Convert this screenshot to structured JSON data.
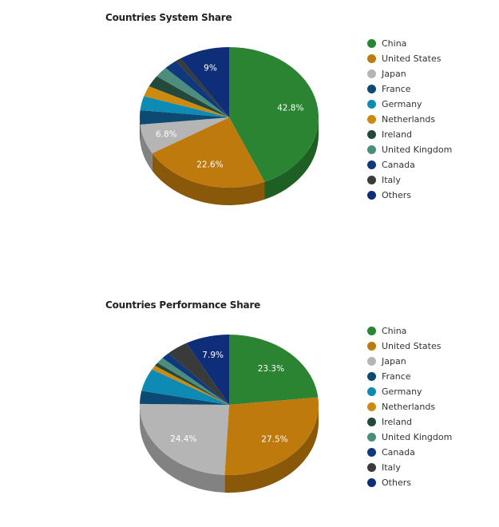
{
  "charts": [
    {
      "title": "Countries System Share",
      "chart_data": {
        "type": "pie",
        "categories": [
          "China",
          "United States",
          "Japan",
          "France",
          "Germany",
          "Netherlands",
          "Ireland",
          "United Kingdom",
          "Canada",
          "Italy",
          "Others"
        ],
        "values": [
          42.8,
          22.6,
          6.8,
          3.2,
          3.2,
          2.4,
          2.6,
          2.4,
          2.4,
          1.0,
          9.0
        ],
        "labels": [
          "42.8%",
          "22.6%",
          "6.8%",
          "",
          "",
          "",
          "",
          "",
          "",
          "",
          "9%"
        ],
        "colors": [
          "#2a8431",
          "#bf7a0d",
          "#b5b5b5",
          "#0c4a74",
          "#0d8bb4",
          "#cc8a10",
          "#23493a",
          "#4c8d7d",
          "#0e3a7d",
          "#3a3a3a",
          "#0e2e7a"
        ],
        "legend_position": "right"
      }
    },
    {
      "title": "Countries Performance Share",
      "chart_data": {
        "type": "pie",
        "categories": [
          "China",
          "United States",
          "Japan",
          "France",
          "Germany",
          "Netherlands",
          "Ireland",
          "United Kingdom",
          "Canada",
          "Italy",
          "Others"
        ],
        "values": [
          23.3,
          27.5,
          24.4,
          3.0,
          5.2,
          1.0,
          0.8,
          1.4,
          1.5,
          4.0,
          7.9
        ],
        "labels": [
          "23.3%",
          "27.5%",
          "24.4%",
          "",
          "",
          "",
          "",
          "",
          "",
          "",
          "7.9%"
        ],
        "colors": [
          "#2a8431",
          "#bf7a0d",
          "#b5b5b5",
          "#0c4a74",
          "#0d8bb4",
          "#cc8a10",
          "#23493a",
          "#4c8d7d",
          "#0e3a7d",
          "#3a3a3a",
          "#0e2e7a"
        ],
        "legend_position": "right"
      }
    }
  ]
}
